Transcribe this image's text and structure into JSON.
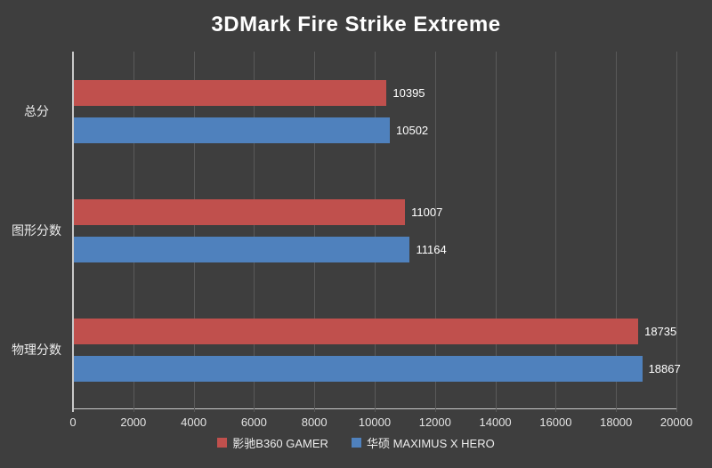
{
  "title": "3DMark Fire Strike Extreme",
  "colors": {
    "background": "#3e3e3e",
    "series_red": "#c0504d",
    "series_blue": "#4f81bd",
    "gridline": "#5a5a5a",
    "axis_line": "#c9c9c9",
    "text": "#ececec"
  },
  "chart_data": {
    "type": "bar",
    "orientation": "horizontal",
    "title": "3DMark Fire Strike Extreme",
    "categories": [
      "总分",
      "图形分数",
      "物理分数"
    ],
    "series": [
      {
        "name": "影驰B360 GAMER",
        "color": "#c0504d",
        "values": [
          10395,
          11007,
          18735
        ]
      },
      {
        "name": "华硕 MAXIMUS X HERO",
        "color": "#4f81bd",
        "values": [
          10502,
          11164,
          18867
        ]
      }
    ],
    "xlim": [
      0,
      20000
    ],
    "x_ticks": [
      "0",
      "2000",
      "4000",
      "6000",
      "8000",
      "10000",
      "12000",
      "14000",
      "16000",
      "18000",
      "20000"
    ],
    "grid": true,
    "legend_position": "bottom"
  }
}
